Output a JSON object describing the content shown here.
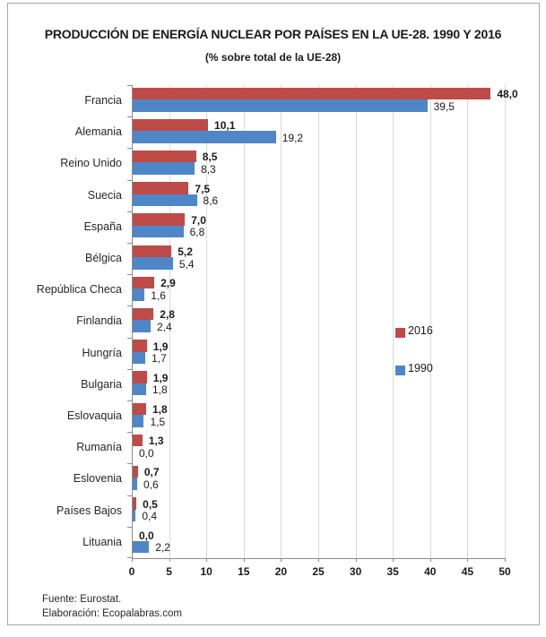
{
  "header": {
    "title": "PRODUCCIÓN DE ENERGÍA NUCLEAR POR PAÍSES EN LA UE-28. 1990 Y 2016",
    "subtitle": "(% sobre total de la UE-28)"
  },
  "footer": {
    "source": "Fuente: Eurostat.",
    "elaboration": "Elaboración: Ecopalabras.com"
  },
  "chart_data": {
    "type": "bar",
    "orientation": "horizontal",
    "title": "PRODUCCIÓN DE ENERGÍA NUCLEAR POR PAÍSES EN LA UE-28. 1990 Y 2016",
    "subtitle": "(% sobre total de la UE-28)",
    "categories": [
      "Francia",
      "Alemania",
      "Reino Unido",
      "Suecia",
      "España",
      "Bélgica",
      "República Checa",
      "Finlandia",
      "Hungría",
      "Bulgaria",
      "Eslovaquia",
      "Rumanía",
      "Eslovenia",
      "Países Bajos",
      "Lituania"
    ],
    "series": [
      {
        "name": "2016",
        "color": "#BE4B48",
        "values": [
          48.0,
          10.1,
          8.5,
          7.5,
          7.0,
          5.2,
          2.9,
          2.8,
          1.9,
          1.9,
          1.8,
          1.3,
          0.7,
          0.5,
          0.0
        ],
        "labels": [
          "48,0",
          "10,1",
          "8,5",
          "7,5",
          "7,0",
          "5,2",
          "2,9",
          "2,8",
          "1,9",
          "1,9",
          "1,8",
          "1,3",
          "0,7",
          "0,5",
          "0,0"
        ],
        "label_bold": true
      },
      {
        "name": "1990",
        "color": "#4F86C8",
        "values": [
          39.5,
          19.2,
          8.3,
          8.6,
          6.8,
          5.4,
          1.6,
          2.4,
          1.7,
          1.8,
          1.5,
          0.0,
          0.6,
          0.4,
          2.2
        ],
        "labels": [
          "39,5",
          "19,2",
          "8,3",
          "8,6",
          "6,8",
          "5,4",
          "1,6",
          "2,4",
          "1,7",
          "1,8",
          "1,5",
          "0,0",
          "0,6",
          "0,4",
          "2,2"
        ],
        "label_bold": false
      }
    ],
    "xlim": [
      0,
      50
    ],
    "xticks": [
      0,
      5,
      10,
      15,
      20,
      25,
      30,
      35,
      40,
      45,
      50
    ],
    "xtick_labels": [
      "0",
      "5",
      "10",
      "15",
      "20",
      "25",
      "30",
      "35",
      "40",
      "45",
      "50"
    ],
    "grid": "vertical-gridlines-on",
    "legend_position": "middle-right",
    "value_decimal_separator": ","
  }
}
